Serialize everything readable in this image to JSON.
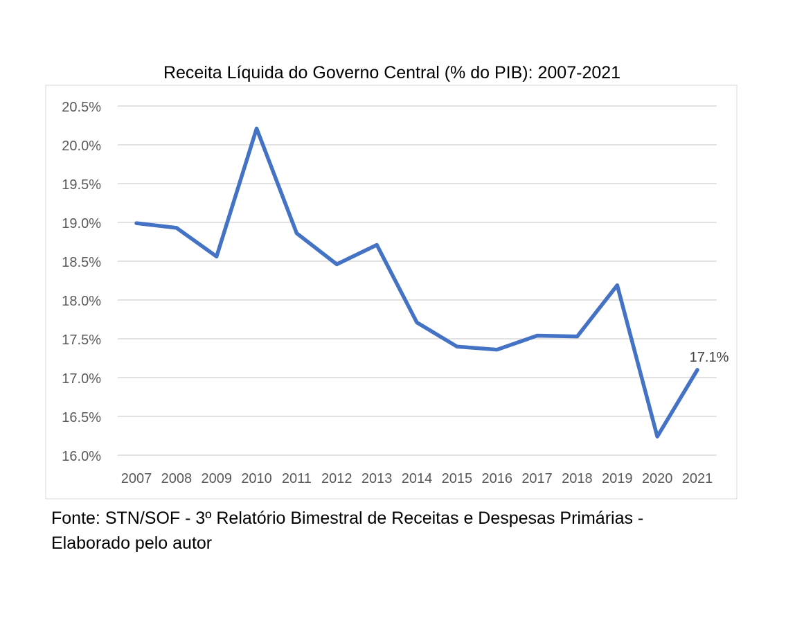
{
  "chart_data": {
    "type": "line",
    "title": "Receita Líquida do Governo Central (% do PIB): 2007-2021",
    "xlabel": "",
    "ylabel": "",
    "categories": [
      "2007",
      "2008",
      "2009",
      "2010",
      "2011",
      "2012",
      "2013",
      "2014",
      "2015",
      "2016",
      "2017",
      "2018",
      "2019",
      "2020",
      "2021"
    ],
    "series": [
      {
        "values": [
          18.99,
          18.93,
          18.56,
          20.21,
          18.86,
          18.46,
          18.71,
          17.71,
          17.4,
          17.36,
          17.54,
          17.53,
          18.19,
          16.24,
          17.1
        ],
        "color": "#4472C4"
      }
    ],
    "ylim": [
      16.0,
      20.5
    ],
    "yticks": [
      "16.0%",
      "16.5%",
      "17.0%",
      "17.5%",
      "18.0%",
      "18.5%",
      "19.0%",
      "19.5%",
      "20.0%",
      "20.5%"
    ],
    "ytick_values": [
      16.0,
      16.5,
      17.0,
      17.5,
      18.0,
      18.5,
      19.0,
      19.5,
      20.0,
      20.5
    ],
    "data_labels": [
      {
        "category": "2021",
        "text": "17.1%"
      }
    ],
    "grid": true,
    "legend": "none"
  },
  "caption": {
    "line1": "Fonte: STN/SOF - 3º Relatório Bimestral de Receitas e Despesas Primárias -",
    "line2": "Elaborado pelo autor"
  }
}
